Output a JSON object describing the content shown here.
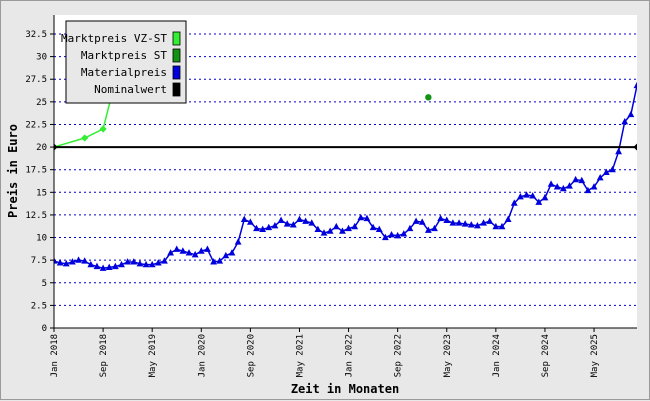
{
  "chart_data": {
    "type": "line",
    "xlabel": "Zeit in Monaten",
    "ylabel": "Preis in Euro",
    "ylim": [
      0,
      34.6
    ],
    "yticks": [
      0,
      2.5,
      5,
      7.5,
      10,
      12.5,
      15,
      17.5,
      20,
      22.5,
      25,
      27.5,
      30,
      32.5
    ],
    "ytick_labels": [
      "0",
      "2.5",
      "5",
      "7.5",
      "10",
      "12.5",
      "15",
      "17.5",
      "20",
      "22.5",
      "25",
      "27.5",
      "30",
      "32.5"
    ],
    "xlim": [
      "2018-01",
      "2025-12"
    ],
    "xticks": [
      "2018-01",
      "2018-09",
      "2019-05",
      "2020-01",
      "2020-09",
      "2021-05",
      "2022-01",
      "2022-09",
      "2023-05",
      "2024-01",
      "2024-09",
      "2025-05"
    ],
    "xtick_labels": [
      "Jan 2018",
      "Sep 2018",
      "May 2019",
      "Jan 2020",
      "Sep 2020",
      "May 2021",
      "Jan 2022",
      "Sep 2022",
      "May 2023",
      "Jan 2024",
      "Sep 2024",
      "May 2025"
    ],
    "grid": "horizontal-dotted",
    "legend_position": "top-left",
    "series": [
      {
        "name": "Marktpreis VZ-ST",
        "color": "#33ee33",
        "marker": "diamond",
        "x": [
          "2018-01",
          "2018-06",
          "2018-09",
          "2018-12"
        ],
        "y": [
          20.0,
          21.0,
          22.0,
          30.0
        ]
      },
      {
        "name": "Marktpreis ST",
        "color": "#139313",
        "marker": "circle",
        "x": [
          "2023-02"
        ],
        "y": [
          25.5
        ]
      },
      {
        "name": "Materialpreis",
        "color": "#0000dd",
        "marker": "triangle",
        "x": [
          "2018-01",
          "2018-02",
          "2018-03",
          "2018-04",
          "2018-05",
          "2018-06",
          "2018-07",
          "2018-08",
          "2018-09",
          "2018-10",
          "2018-11",
          "2018-12",
          "2019-01",
          "2019-02",
          "2019-03",
          "2019-04",
          "2019-05",
          "2019-06",
          "2019-07",
          "2019-08",
          "2019-09",
          "2019-10",
          "2019-11",
          "2019-12",
          "2020-01",
          "2020-02",
          "2020-03",
          "2020-04",
          "2020-05",
          "2020-06",
          "2020-07",
          "2020-08",
          "2020-09",
          "2020-10",
          "2020-11",
          "2020-12",
          "2021-01",
          "2021-02",
          "2021-03",
          "2021-04",
          "2021-05",
          "2021-06",
          "2021-07",
          "2021-08",
          "2021-09",
          "2021-10",
          "2021-11",
          "2021-12",
          "2022-01",
          "2022-02",
          "2022-03",
          "2022-04",
          "2022-05",
          "2022-06",
          "2022-07",
          "2022-08",
          "2022-09",
          "2022-10",
          "2022-11",
          "2022-12",
          "2023-01",
          "2023-02",
          "2023-03",
          "2023-04",
          "2023-05",
          "2023-06",
          "2023-07",
          "2023-08",
          "2023-09",
          "2023-10",
          "2023-11",
          "2023-12",
          "2024-01",
          "2024-02",
          "2024-03",
          "2024-04",
          "2024-05",
          "2024-06",
          "2024-07",
          "2024-08",
          "2024-09",
          "2024-10",
          "2024-11",
          "2024-12",
          "2025-01",
          "2025-02",
          "2025-03",
          "2025-04",
          "2025-05",
          "2025-06",
          "2025-07",
          "2025-08",
          "2025-09",
          "2025-10",
          "2025-11",
          "2025-12"
        ],
        "y": [
          7.4,
          7.2,
          7.1,
          7.3,
          7.5,
          7.4,
          7.0,
          6.8,
          6.6,
          6.7,
          6.8,
          7.0,
          7.3,
          7.3,
          7.1,
          7.0,
          7.0,
          7.2,
          7.4,
          8.3,
          8.7,
          8.5,
          8.3,
          8.1,
          8.5,
          8.7,
          7.3,
          7.4,
          8.0,
          8.3,
          9.5,
          12.0,
          11.7,
          11.0,
          10.9,
          11.1,
          11.3,
          11.9,
          11.5,
          11.4,
          12.0,
          11.8,
          11.6,
          10.9,
          10.5,
          10.7,
          11.2,
          10.7,
          11.0,
          11.2,
          12.2,
          12.1,
          11.1,
          10.9,
          10.0,
          10.3,
          10.2,
          10.4,
          11.0,
          11.8,
          11.7,
          10.8,
          11.0,
          12.1,
          11.9,
          11.6,
          11.6,
          11.5,
          11.4,
          11.3,
          11.6,
          11.8,
          11.2,
          11.2,
          12.0,
          13.8,
          14.5,
          14.7,
          14.6,
          13.9,
          14.4,
          15.9,
          15.6,
          15.4,
          15.7,
          16.4,
          16.3,
          15.2,
          15.6,
          16.6,
          17.2,
          17.5,
          19.5,
          22.8,
          23.6,
          26.8
        ]
      },
      {
        "name": "Nominalwert",
        "color": "#000000",
        "marker": "diamond",
        "x": [
          "2018-01",
          "2025-12"
        ],
        "y": [
          20.0,
          20.0
        ]
      }
    ]
  }
}
